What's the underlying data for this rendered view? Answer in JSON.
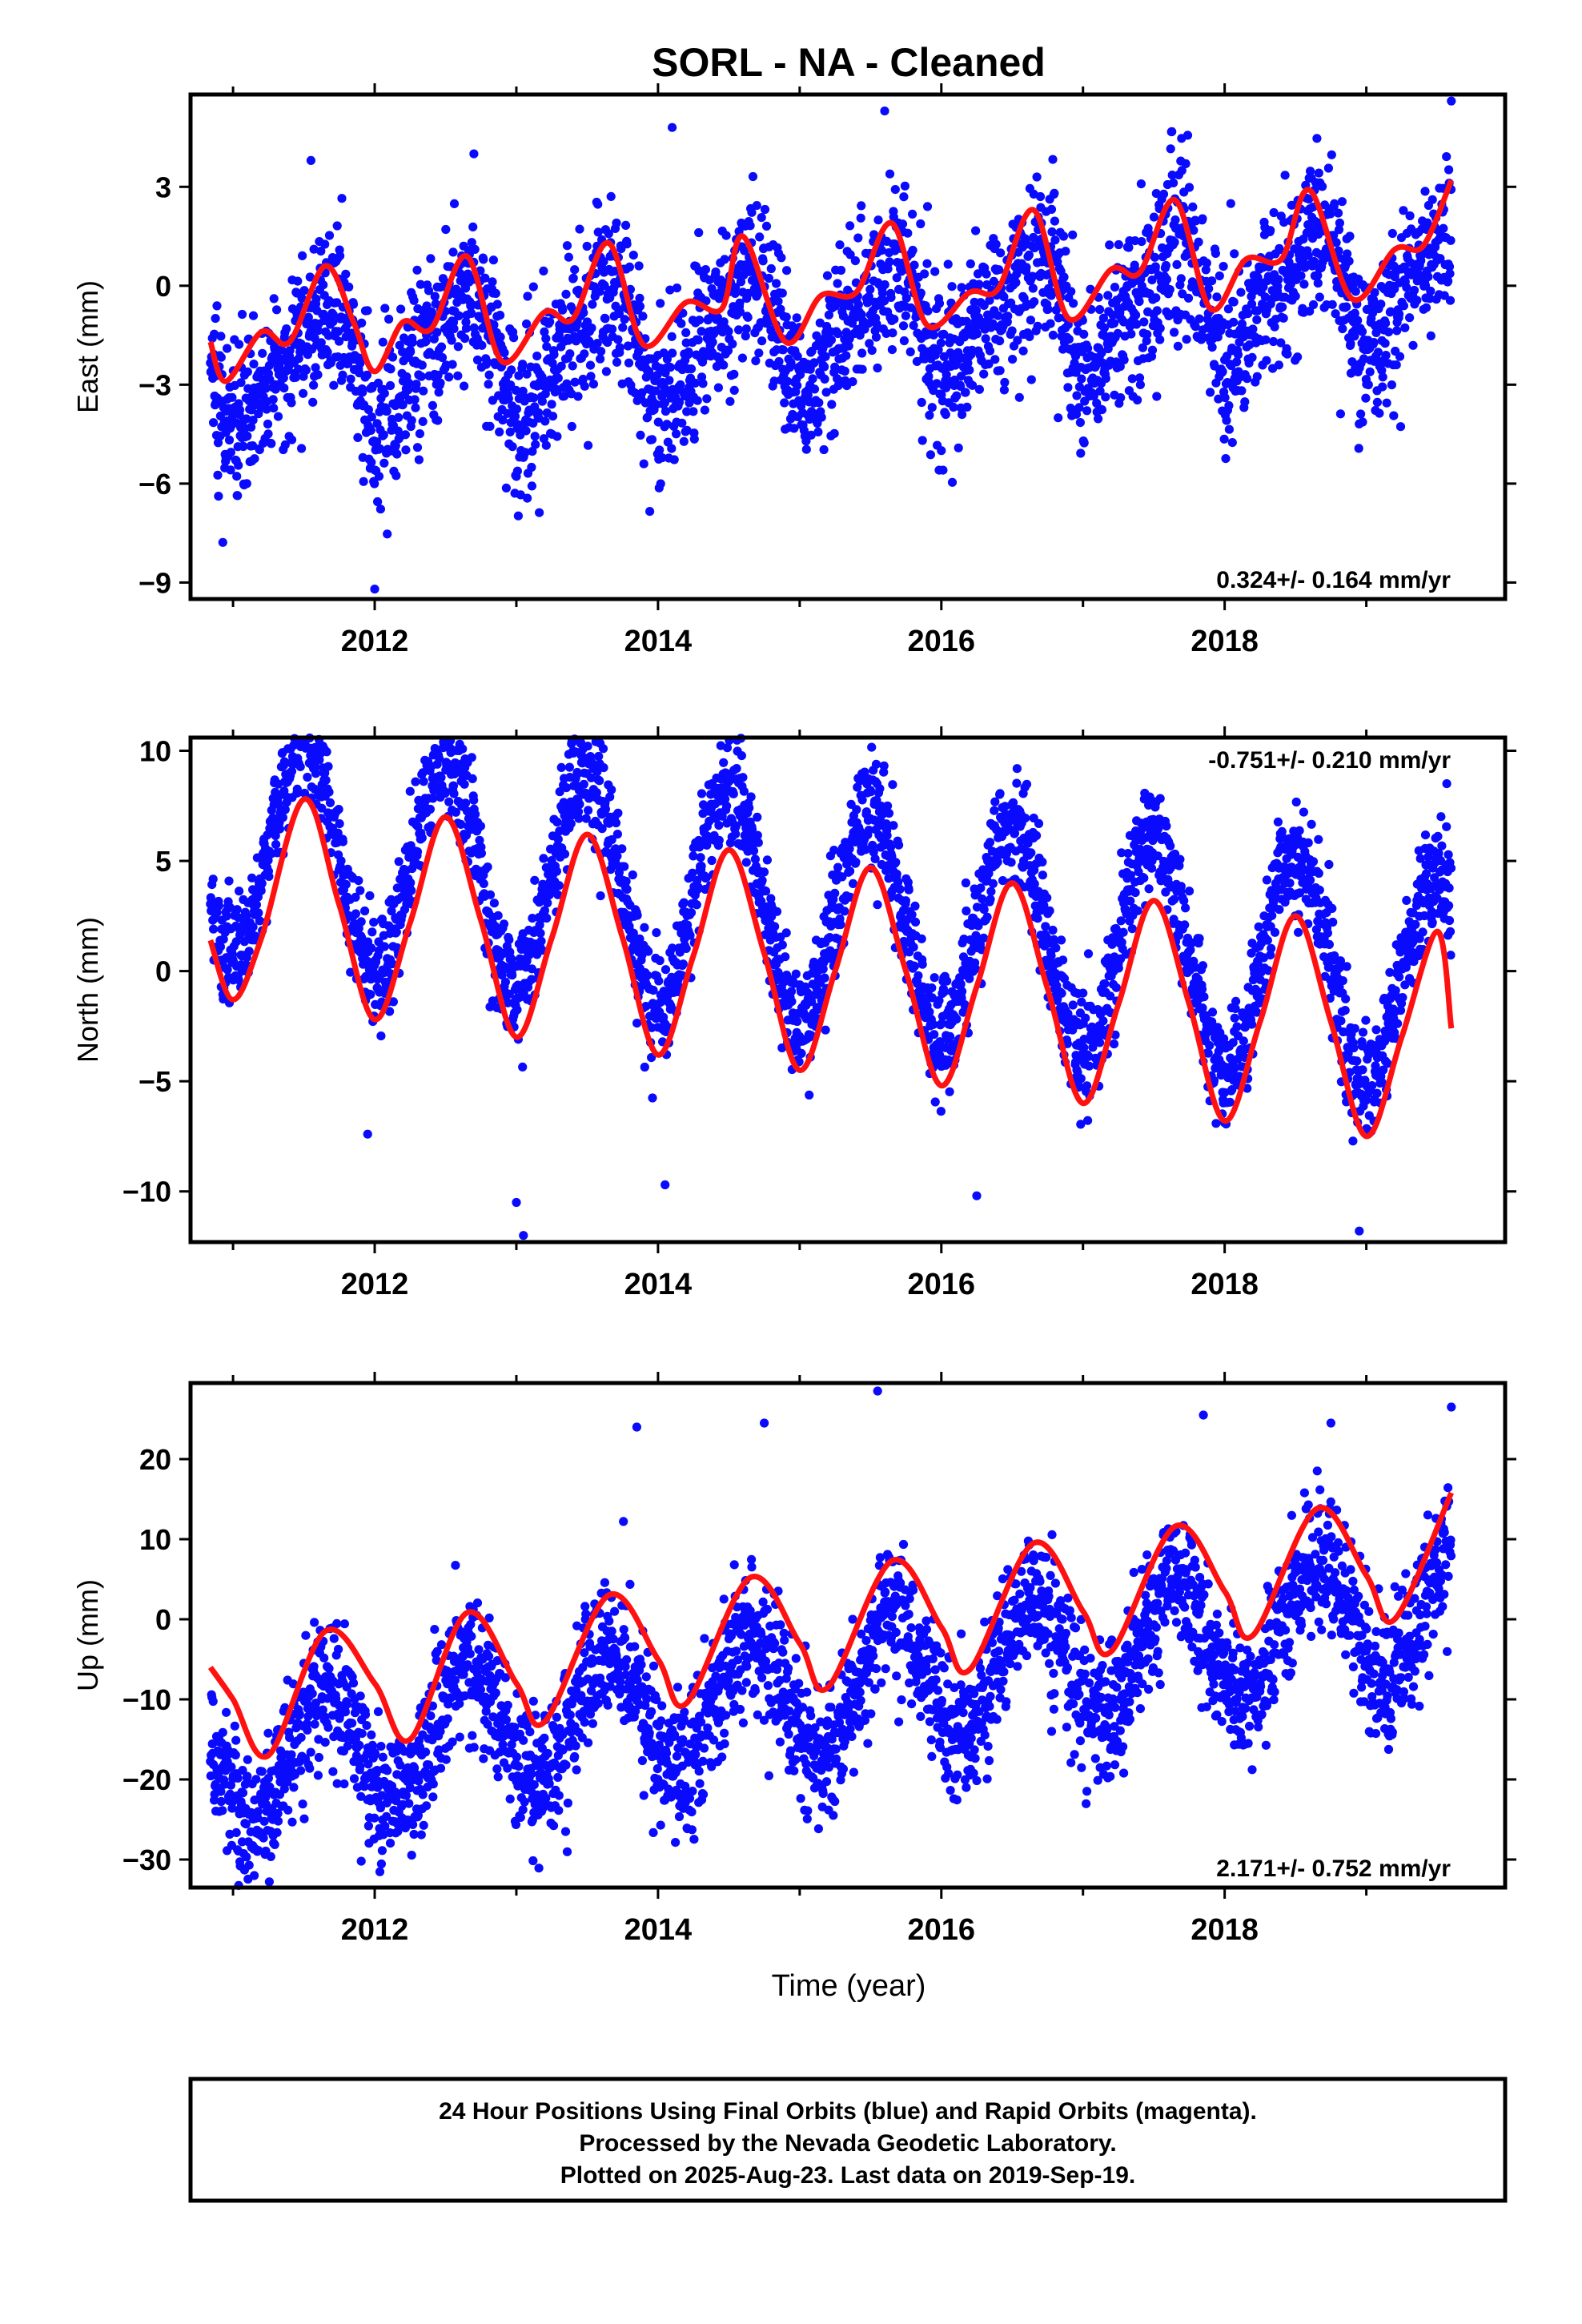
{
  "title": "SORL  - NA - Cleaned",
  "xlabel": "Time (year)",
  "footer": [
    "24 Hour Positions Using Final Orbits (blue) and Rapid Orbits (magenta).",
    "Processed by the Nevada Geodetic Laboratory.",
    "Plotted on 2025-Aug-23. Last data on 2019-Sep-19."
  ],
  "colors": {
    "points": "#0a0aff",
    "fit": "#ff1111",
    "frame": "#000000"
  },
  "chart_data": [
    {
      "type": "scatter",
      "panel": "east",
      "ylabel": "East (mm)",
      "rate_text": "0.324+/- 0.164 mm/yr",
      "rate_position": "bottom-right",
      "xlim": [
        2010.7,
        2019.98
      ],
      "ylim": [
        -9.5,
        5.8
      ],
      "yticks": [
        3,
        0,
        -3,
        -6,
        -9
      ],
      "ytick_labels": [
        "3",
        "0",
        "−3",
        "−6",
        "−9"
      ],
      "xticks": [
        2012,
        2014,
        2016,
        2018
      ],
      "xtick_labels": [
        "2012",
        "2014",
        "2016",
        "2018"
      ],
      "model": {
        "start": 2010.84,
        "end": 2019.6,
        "offset": -1.3,
        "rate": 0.324,
        "seasonal_amplitude": 1.6,
        "seasonal_peak": 0.6,
        "semiannual_amplitude": 0.5,
        "semiannual_peak": 0.25,
        "noise_sd": 1.25
      },
      "fit_curve": {
        "x": [
          2010.84,
          2010.95,
          2011.2,
          2011.4,
          2011.65,
          2011.85,
          2012.0,
          2012.2,
          2012.4,
          2012.65,
          2012.9,
          2013.2,
          2013.4,
          2013.65,
          2013.9,
          2014.2,
          2014.45,
          2014.6,
          2014.9,
          2015.15,
          2015.4,
          2015.65,
          2015.9,
          2016.2,
          2016.4,
          2016.65,
          2016.9,
          2017.2,
          2017.4,
          2017.65,
          2017.9,
          2018.15,
          2018.4,
          2018.6,
          2018.9,
          2019.2,
          2019.4,
          2019.6
        ],
        "y": [
          -1.7,
          -2.9,
          -1.4,
          -1.7,
          0.6,
          -1.1,
          -2.6,
          -1.1,
          -1.3,
          0.9,
          -2.3,
          -0.8,
          -1.0,
          1.3,
          -1.8,
          -0.5,
          -0.7,
          1.5,
          -1.7,
          -0.3,
          -0.2,
          1.9,
          -1.2,
          -0.2,
          -0.1,
          2.3,
          -1.0,
          0.5,
          0.4,
          2.6,
          -0.7,
          0.8,
          0.8,
          2.9,
          -0.4,
          1.1,
          1.2,
          3.2
        ]
      },
      "outliers": [
        {
          "x": 2012.0,
          "y": -9.2
        },
        {
          "x": 2013.9,
          "y": -5.4
        },
        {
          "x": 2014.1,
          "y": 4.8
        },
        {
          "x": 2015.6,
          "y": 5.3
        },
        {
          "x": 2019.6,
          "y": 5.6
        },
        {
          "x": 2011.55,
          "y": 3.8
        },
        {
          "x": 2012.7,
          "y": 4.0
        },
        {
          "x": 2016.0,
          "y": -5.0
        },
        {
          "x": 2010.95,
          "y": -5.2
        }
      ]
    },
    {
      "type": "scatter",
      "panel": "north",
      "ylabel": "North (mm)",
      "rate_text": "-0.751+/- 0.210 mm/yr",
      "rate_position": "top-right",
      "xlim": [
        2010.7,
        2019.98
      ],
      "ylim": [
        -12.3,
        10.6
      ],
      "yticks": [
        10,
        5,
        0,
        -5,
        -10
      ],
      "ytick_labels": [
        "10",
        "5",
        "0",
        "−5",
        "−10"
      ],
      "xticks": [
        2012,
        2014,
        2016,
        2018
      ],
      "xtick_labels": [
        "2012",
        "2014",
        "2016",
        "2018"
      ],
      "model": {
        "start": 2010.84,
        "end": 2019.6,
        "offset": 2.8,
        "rate": -0.751,
        "seasonal_amplitude": 5.0,
        "seasonal_peak": 0.5,
        "semiannual_amplitude": 0,
        "semiannual_peak": 0,
        "noise_sd": 1.3
      },
      "fit_curve": {
        "x": [
          2010.84,
          2011.0,
          2011.2,
          2011.5,
          2011.75,
          2012.0,
          2012.25,
          2012.5,
          2012.75,
          2013.0,
          2013.25,
          2013.5,
          2013.75,
          2014.0,
          2014.25,
          2014.5,
          2014.75,
          2015.0,
          2015.25,
          2015.5,
          2015.75,
          2016.0,
          2016.25,
          2016.5,
          2016.75,
          2017.0,
          2017.25,
          2017.5,
          2017.75,
          2018.0,
          2018.25,
          2018.5,
          2018.75,
          2019.0,
          2019.25,
          2019.5,
          2019.6
        ],
        "y": [
          1.4,
          -1.3,
          1.5,
          7.8,
          3.0,
          -2.2,
          2.2,
          7.0,
          2.3,
          -3.0,
          1.5,
          6.2,
          1.5,
          -3.8,
          0.7,
          5.5,
          0.8,
          -4.5,
          0.0,
          4.7,
          0.0,
          -5.2,
          -0.7,
          4.0,
          -0.8,
          -6.0,
          -1.5,
          3.2,
          -1.5,
          -6.8,
          -2.3,
          2.5,
          -2.3,
          -7.5,
          -3.0,
          1.8,
          -2.6
        ]
      },
      "outliers": [
        {
          "x": 2012.6,
          "y": 10.3
        },
        {
          "x": 2013.05,
          "y": -12.0
        },
        {
          "x": 2018.95,
          "y": -11.8
        },
        {
          "x": 2013.0,
          "y": -10.5
        },
        {
          "x": 2014.05,
          "y": -9.7
        },
        {
          "x": 2016.25,
          "y": -10.2
        },
        {
          "x": 2011.95,
          "y": -7.4
        }
      ]
    },
    {
      "type": "scatter",
      "panel": "up",
      "ylabel": "Up (mm)",
      "rate_text": "2.171+/- 0.752 mm/yr",
      "rate_position": "bottom-right",
      "xlim": [
        2010.7,
        2019.98
      ],
      "ylim": [
        -33.5,
        29.5
      ],
      "yticks": [
        20,
        10,
        0,
        -10,
        -20,
        -30
      ],
      "ytick_labels": [
        "20",
        "10",
        "0",
        "−10",
        "−20",
        "−30"
      ],
      "xticks": [
        2012,
        2014,
        2016,
        2018
      ],
      "xtick_labels": [
        "2012",
        "2014",
        "2016",
        "2018"
      ],
      "model": {
        "start": 2010.84,
        "end": 2019.6,
        "offset": -9.0,
        "rate": 2.171,
        "seasonal_amplitude": 8.0,
        "seasonal_peak": 0.65,
        "semiannual_amplitude": 0,
        "semiannual_peak": 0,
        "noise_sd": 4.3
      },
      "fit_curve": {
        "x": [
          2010.84,
          2011.0,
          2011.25,
          2011.65,
          2012.0,
          2012.25,
          2012.65,
          2013.0,
          2013.2,
          2013.65,
          2014.0,
          2014.2,
          2014.65,
          2015.0,
          2015.2,
          2015.65,
          2016.0,
          2016.2,
          2016.65,
          2017.0,
          2017.2,
          2017.65,
          2018.0,
          2018.2,
          2018.65,
          2019.0,
          2019.2,
          2019.6
        ],
        "y": [
          -6.0,
          -10.0,
          -17.0,
          -1.5,
          -8.0,
          -15.0,
          0.8,
          -8.0,
          -12.8,
          3.0,
          -5.0,
          -10.5,
          5.2,
          -3.0,
          -8.5,
          7.3,
          -1.0,
          -6.3,
          9.5,
          1.0,
          -4.0,
          11.6,
          3.5,
          -2.0,
          13.8,
          5.5,
          0.0,
          15.8
        ]
      },
      "outliers": [
        {
          "x": 2015.55,
          "y": 28.5
        },
        {
          "x": 2019.6,
          "y": 26.5
        },
        {
          "x": 2011.15,
          "y": -32.0
        },
        {
          "x": 2013.85,
          "y": 24.0
        },
        {
          "x": 2018.75,
          "y": 24.5
        },
        {
          "x": 2014.75,
          "y": 24.5
        },
        {
          "x": 2013.9,
          "y": -22.0
        },
        {
          "x": 2017.85,
          "y": 25.5
        }
      ]
    }
  ]
}
